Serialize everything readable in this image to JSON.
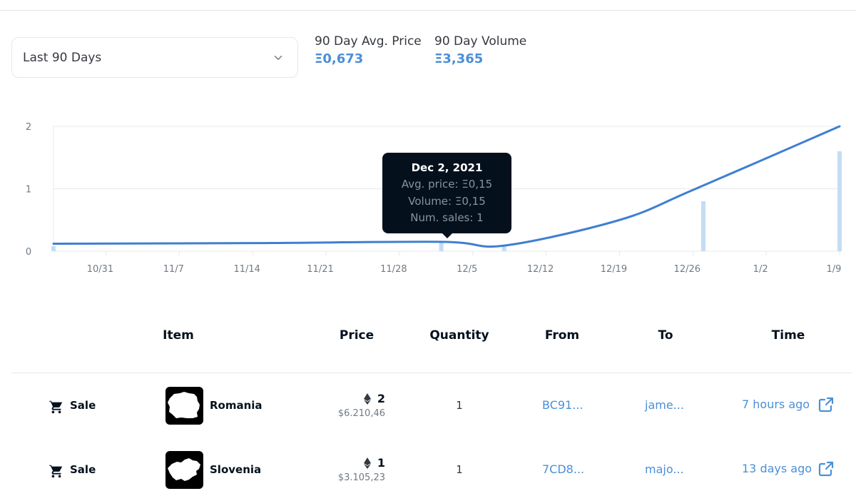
{
  "filter": {
    "selected": "Last 90 Days"
  },
  "stats": {
    "avg_price_label": "90 Day Avg. Price",
    "avg_price_value": "Ξ0,673",
    "volume_label": "90 Day Volume",
    "volume_value": "Ξ3,365"
  },
  "colors": {
    "accent": "#4a8fd9",
    "line": "#3f7fd1",
    "bar": "#c5dcf3",
    "tooltip_bg": "#04111d"
  },
  "chart_data": {
    "type": "line",
    "x_range": [
      "10/26",
      "1/9"
    ],
    "ylim": [
      0,
      2
    ],
    "y_ticks": [
      "0",
      "1",
      "2"
    ],
    "x_ticks": [
      "10/31",
      "11/7",
      "11/14",
      "11/21",
      "11/28",
      "12/5",
      "12/12",
      "12/19",
      "12/26",
      "1/2",
      "1/9"
    ],
    "series": [
      {
        "role": "avg-price-line",
        "points": [
          {
            "x": "10/26",
            "y": 0.12
          },
          {
            "x": "11/14",
            "y": 0.13
          },
          {
            "x": "12/2",
            "y": 0.15
          },
          {
            "x": "12/8",
            "y": 0.09
          },
          {
            "x": "12/19",
            "y": 0.5
          },
          {
            "x": "12/26",
            "y": 0.98
          },
          {
            "x": "1/9",
            "y": 2.0
          }
        ]
      },
      {
        "role": "volume-bars",
        "points": [
          {
            "x": "10/26",
            "y": 0.08
          },
          {
            "x": "12/2",
            "y": 0.15
          },
          {
            "x": "12/8",
            "y": 0.09
          },
          {
            "x": "12/27",
            "y": 0.8
          },
          {
            "x": "1/9",
            "y": 1.6
          }
        ]
      }
    ],
    "tooltip": {
      "date": "Dec 2, 2021",
      "avg_price": "Avg. price: Ξ0,15",
      "volume": "Volume: Ξ0,15",
      "num_sales": "Num. sales: 1"
    }
  },
  "table": {
    "headers": {
      "item": "Item",
      "price": "Price",
      "quantity": "Quantity",
      "from": "From",
      "to": "To",
      "time": "Time"
    },
    "rows": [
      {
        "event": "Sale",
        "item": "Romania",
        "eth": "2",
        "usd": "$6.210,46",
        "quantity": "1",
        "from": "BC91...",
        "to": "jame...",
        "time": "7 hours ago"
      },
      {
        "event": "Sale",
        "item": "Slovenia",
        "eth": "1",
        "usd": "$3.105,23",
        "quantity": "1",
        "from": "7CD8...",
        "to": "majo...",
        "time": "13 days ago"
      }
    ]
  }
}
